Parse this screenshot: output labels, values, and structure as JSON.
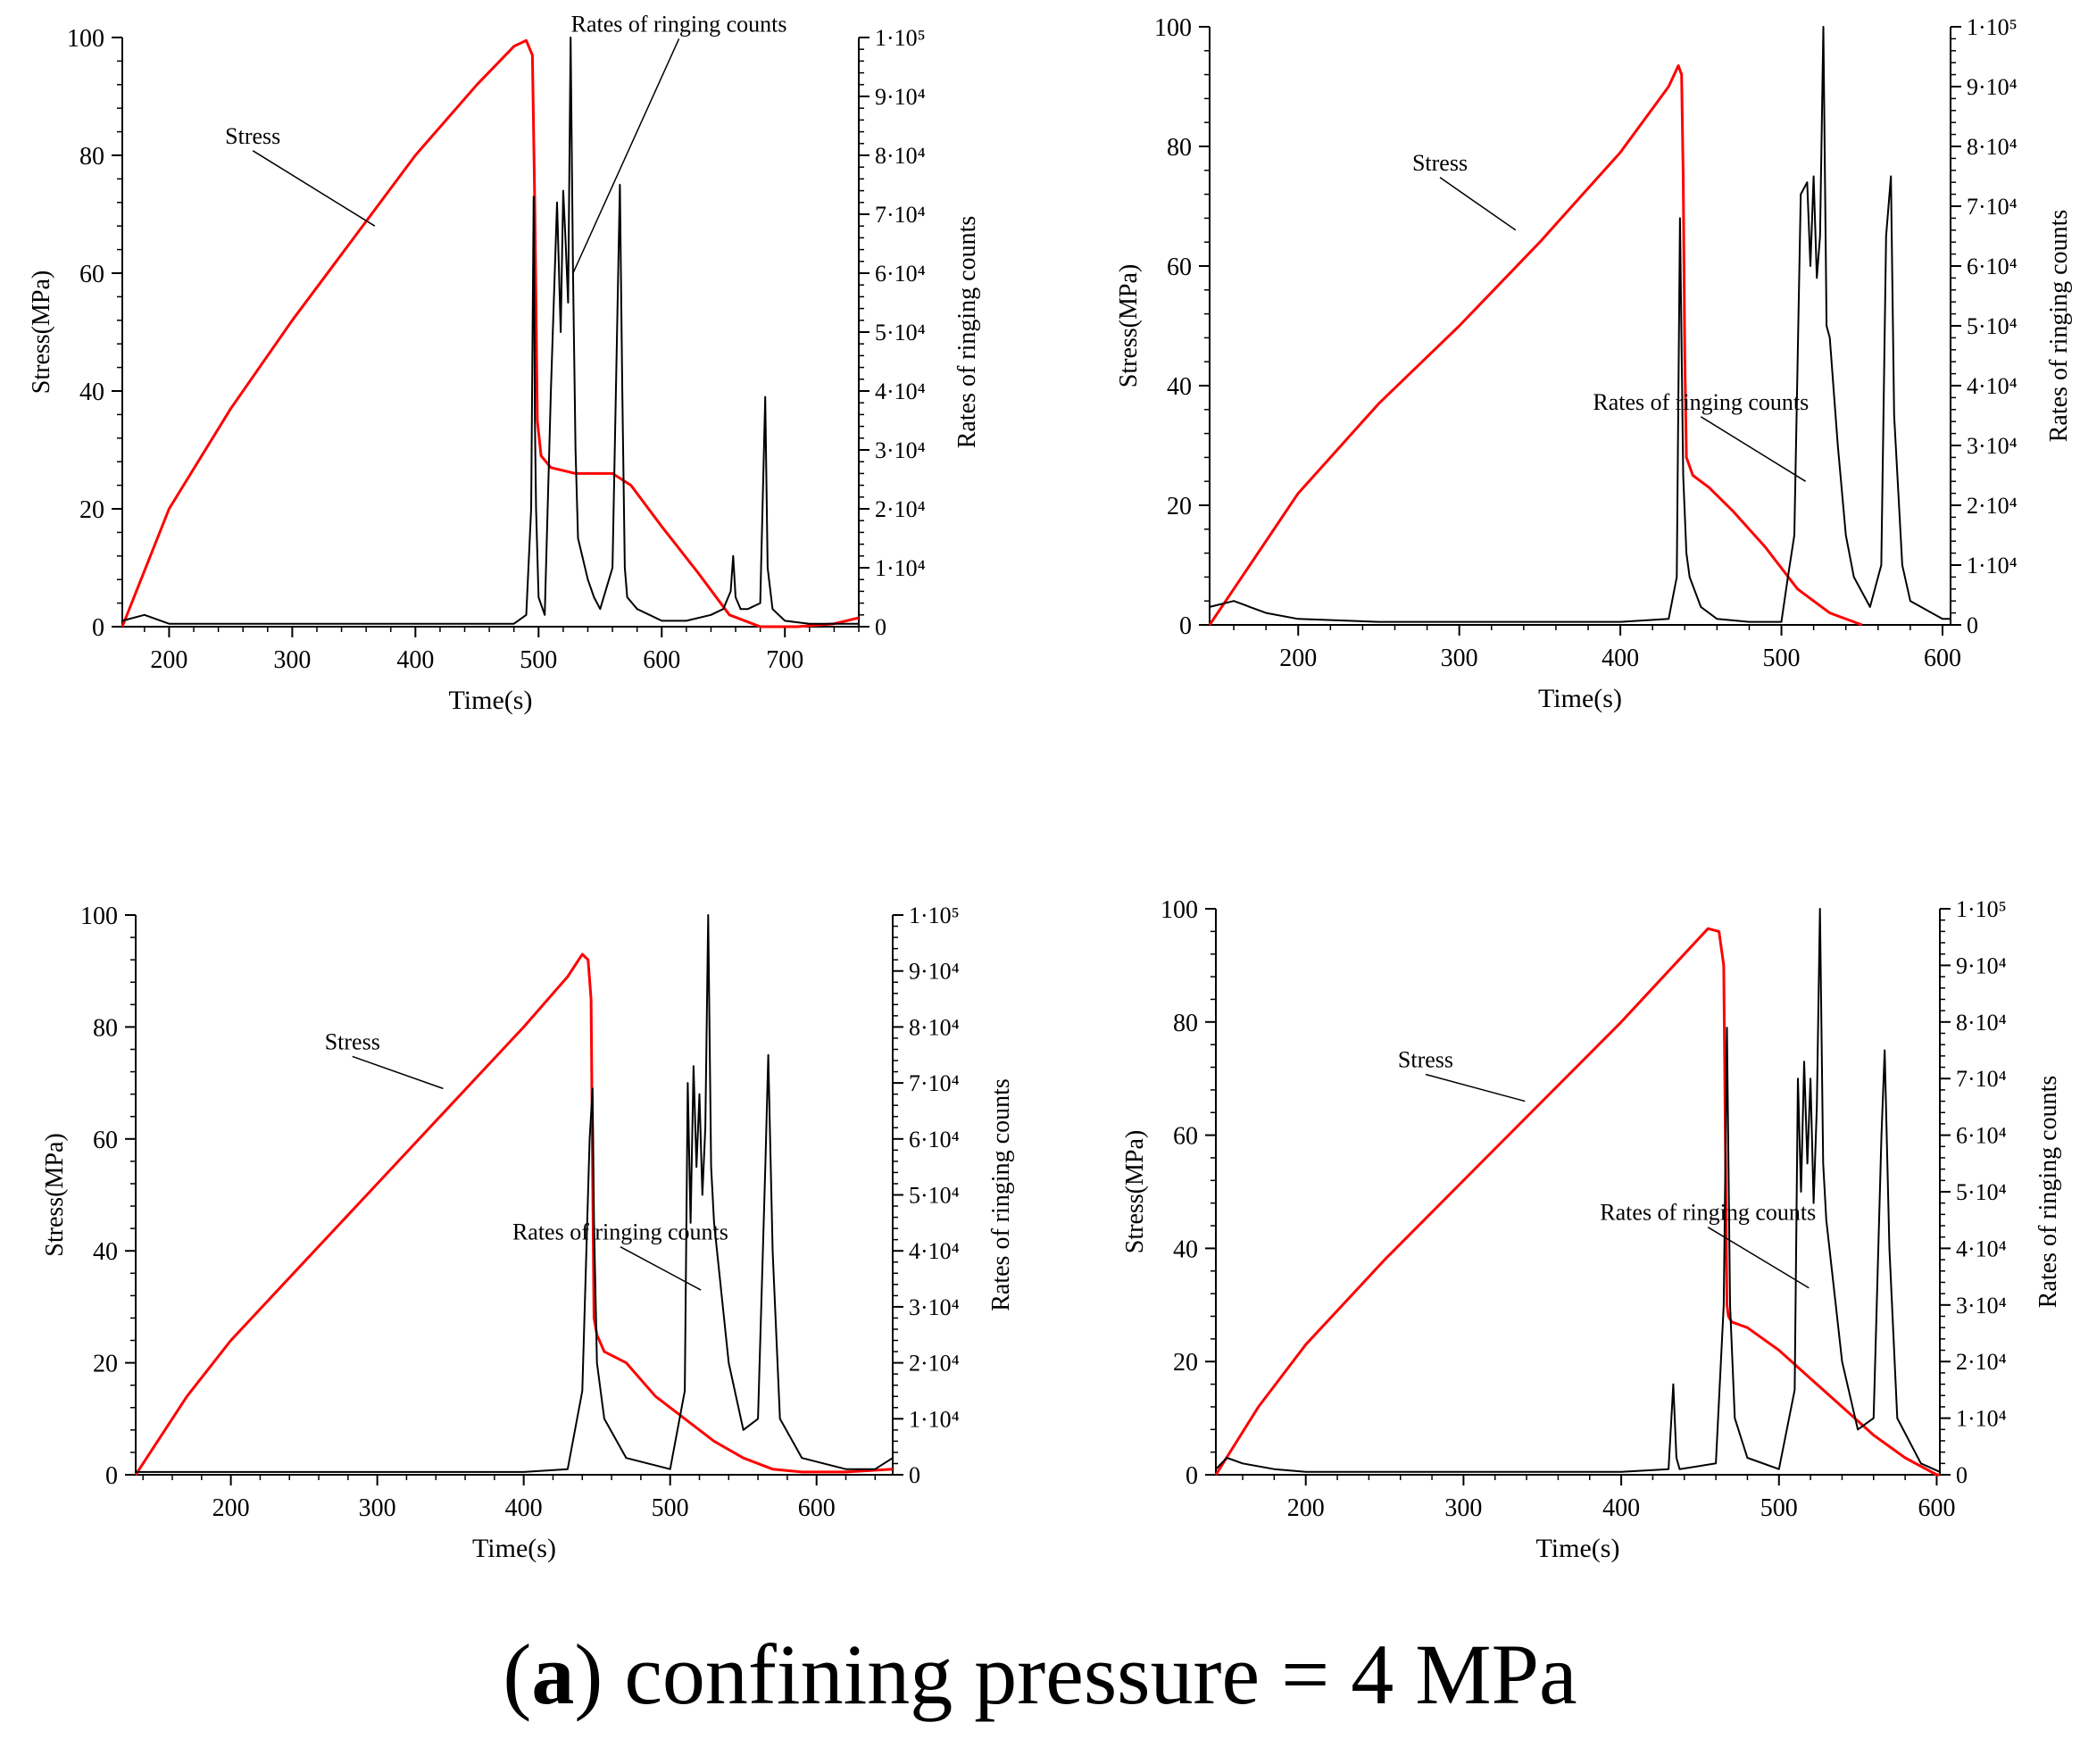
{
  "caption": {
    "open": "(",
    "letter": "a",
    "close": ")",
    "text": " confining pressure = 4 MPa"
  },
  "colors": {
    "stress": "#ff0000",
    "ringing": "#000000",
    "axis": "#000000"
  },
  "chart_data": [
    {
      "type": "line",
      "title": "",
      "xlabel": "Time(s)",
      "ylabel": "Stress(MPa)",
      "y2label": "Rates of ringing counts",
      "xlim": [
        162,
        760
      ],
      "ylim": [
        0,
        100
      ],
      "y2lim": [
        0,
        100000
      ],
      "xticks": [
        200,
        300,
        400,
        500,
        600,
        700
      ],
      "yticks": [
        0,
        20,
        40,
        60,
        80,
        100
      ],
      "y2ticks": [
        "0",
        "1·10⁴",
        "2·10⁴",
        "3·10⁴",
        "4·10⁴",
        "5·10⁴",
        "6·10⁴",
        "7·10⁴",
        "8·10⁴",
        "9·10⁴",
        "1·10⁵"
      ],
      "annotations": [
        {
          "text": "Stress",
          "x": 268,
          "y": 82,
          "target": [
            367,
            68
          ]
        },
        {
          "text": "Rates of ringing counts",
          "x": 614,
          "y": 101,
          "target": [
            528,
            60
          ]
        }
      ],
      "series": [
        {
          "name": "Stress",
          "axis": "left",
          "x": [
            162,
            200,
            250,
            300,
            350,
            400,
            450,
            480,
            490,
            495,
            497,
            499,
            502,
            510,
            530,
            560,
            575,
            600,
            630,
            655,
            680,
            710,
            740,
            760
          ],
          "y": [
            0,
            20,
            37,
            52,
            66,
            80,
            92,
            98.5,
            99.5,
            97,
            70,
            35,
            29,
            27,
            26,
            26,
            24,
            17,
            9,
            2,
            0,
            0,
            0.5,
            1.5
          ]
        },
        {
          "name": "Rates of ringing counts",
          "axis": "right",
          "x": [
            162,
            180,
            200,
            300,
            400,
            480,
            490,
            494,
            496,
            497,
            498,
            500,
            505,
            510,
            515,
            518,
            520,
            522,
            524,
            526,
            528,
            530,
            532,
            540,
            545,
            550,
            560,
            566,
            568,
            570,
            572,
            580,
            600,
            620,
            640,
            650,
            656,
            658,
            660,
            664,
            670,
            680,
            684,
            686,
            690,
            700,
            720,
            740,
            760
          ],
          "y": [
            1000,
            2000,
            500,
            500,
            500,
            500,
            2000,
            20000,
            73000,
            35000,
            20000,
            5000,
            2000,
            40000,
            72000,
            50000,
            74000,
            65000,
            55000,
            100000,
            60000,
            30000,
            15000,
            8000,
            5000,
            3000,
            10000,
            75000,
            40000,
            10000,
            5000,
            3000,
            1000,
            1000,
            2000,
            3000,
            6000,
            12000,
            5000,
            3000,
            3000,
            4000,
            39000,
            10000,
            3000,
            1000,
            500,
            500,
            500
          ]
        }
      ]
    },
    {
      "type": "line",
      "title": "",
      "xlabel": "Time(s)",
      "ylabel": "Stress(MPa)",
      "y2label": "Rates of ringing counts",
      "xlim": [
        145,
        605
      ],
      "ylim": [
        0,
        100
      ],
      "y2lim": [
        0,
        100000
      ],
      "xticks": [
        200,
        300,
        400,
        500,
        600
      ],
      "yticks": [
        0,
        20,
        40,
        60,
        80,
        100
      ],
      "y2ticks": [
        "0",
        "1·10⁴",
        "2·10⁴",
        "3·10⁴",
        "4·10⁴",
        "5·10⁴",
        "6·10⁴",
        "7·10⁴",
        "8·10⁴",
        "9·10⁴",
        "1·10⁵"
      ],
      "annotations": [
        {
          "text": "Stress",
          "x": 288,
          "y": 76,
          "target": [
            335,
            66
          ]
        },
        {
          "text": "Rates of ringing counts",
          "x": 450,
          "y": 36,
          "target": [
            515,
            24
          ]
        }
      ],
      "series": [
        {
          "name": "Stress",
          "axis": "left",
          "x": [
            145,
            170,
            200,
            250,
            300,
            350,
            400,
            430,
            436,
            438,
            439,
            440,
            441,
            445,
            455,
            470,
            490,
            510,
            530,
            550
          ],
          "y": [
            0,
            10,
            22,
            37,
            50,
            64,
            79,
            90,
            93.5,
            92,
            75,
            45,
            28,
            25,
            23,
            19,
            13,
            6,
            2,
            0
          ]
        },
        {
          "name": "Rates of ringing counts",
          "axis": "right",
          "x": [
            145,
            160,
            170,
            180,
            200,
            250,
            300,
            400,
            430,
            435,
            437,
            439,
            441,
            443,
            450,
            460,
            480,
            500,
            504,
            508,
            512,
            516,
            518,
            520,
            522,
            524,
            526,
            528,
            530,
            535,
            540,
            545,
            555,
            562,
            565,
            568,
            570,
            575,
            580,
            600,
            605
          ],
          "y": [
            3000,
            4000,
            3000,
            2000,
            1000,
            500,
            500,
            500,
            1000,
            8000,
            68000,
            25000,
            12000,
            8000,
            3000,
            1000,
            500,
            500,
            8000,
            15000,
            72000,
            74000,
            60000,
            75000,
            58000,
            65000,
            100000,
            50000,
            48000,
            30000,
            15000,
            8000,
            3000,
            10000,
            65000,
            75000,
            35000,
            10000,
            4000,
            1000,
            1000
          ]
        }
      ]
    },
    {
      "type": "line",
      "title": "",
      "xlabel": "Time(s)",
      "ylabel": "Stress(MPa)",
      "y2label": "Rates of ringing counts",
      "xlim": [
        135,
        652
      ],
      "ylim": [
        0,
        100
      ],
      "y2lim": [
        0,
        100000
      ],
      "xticks": [
        200,
        300,
        400,
        500,
        600
      ],
      "yticks": [
        0,
        20,
        40,
        60,
        80,
        100
      ],
      "y2ticks": [
        "0",
        "1·10⁴",
        "2·10⁴",
        "3·10⁴",
        "4·10⁴",
        "5·10⁴",
        "6·10⁴",
        "7·10⁴",
        "8·10⁴",
        "9·10⁴",
        "1·10⁵"
      ],
      "annotations": [
        {
          "text": "Stress",
          "x": 283,
          "y": 76,
          "target": [
            345,
            69
          ]
        },
        {
          "text": "Rates of ringing counts",
          "x": 466,
          "y": 42,
          "target": [
            521,
            33
          ]
        }
      ],
      "series": [
        {
          "name": "Stress",
          "axis": "left",
          "x": [
            135,
            170,
            200,
            250,
            300,
            350,
            400,
            430,
            440,
            444,
            446,
            447,
            448,
            450,
            455,
            470,
            490,
            510,
            530,
            550,
            570,
            590,
            620,
            652
          ],
          "y": [
            0,
            14,
            24,
            38,
            52,
            66,
            80,
            89,
            93,
            92,
            85,
            55,
            28,
            25,
            22,
            20,
            14,
            10,
            6,
            3,
            1,
            0.5,
            0.5,
            1
          ]
        },
        {
          "name": "Rates of ringing counts",
          "axis": "right",
          "x": [
            135,
            200,
            300,
            400,
            430,
            440,
            445,
            447,
            448,
            450,
            455,
            470,
            500,
            505,
            510,
            512,
            514,
            516,
            518,
            520,
            522,
            524,
            526,
            528,
            530,
            540,
            550,
            560,
            565,
            567,
            570,
            575,
            590,
            620,
            640,
            652
          ],
          "y": [
            500,
            500,
            500,
            500,
            1000,
            15000,
            60000,
            69000,
            45000,
            20000,
            10000,
            3000,
            1000,
            8000,
            15000,
            70000,
            45000,
            73000,
            55000,
            68000,
            50000,
            62000,
            100000,
            55000,
            45000,
            20000,
            8000,
            10000,
            55000,
            75000,
            40000,
            10000,
            3000,
            1000,
            1000,
            3000
          ]
        }
      ]
    },
    {
      "type": "line",
      "title": "",
      "xlabel": "Time(s)",
      "ylabel": "Stress(MPa)",
      "y2label": "Rates of ringing counts",
      "xlim": [
        143,
        602
      ],
      "ylim": [
        0,
        100
      ],
      "y2lim": [
        0,
        100000
      ],
      "xticks": [
        200,
        300,
        400,
        500,
        600
      ],
      "yticks": [
        0,
        20,
        40,
        60,
        80,
        100
      ],
      "y2ticks": [
        "0",
        "1·10⁴",
        "2·10⁴",
        "3·10⁴",
        "4·10⁴",
        "5·10⁴",
        "6·10⁴",
        "7·10⁴",
        "8·10⁴",
        "9·10⁴",
        "1·10⁵"
      ],
      "annotations": [
        {
          "text": "Stress",
          "x": 276,
          "y": 72,
          "target": [
            339,
            66
          ]
        },
        {
          "text": "Rates of ringing counts",
          "x": 455,
          "y": 45,
          "target": [
            519,
            33
          ]
        }
      ],
      "series": [
        {
          "name": "Stress",
          "axis": "left",
          "x": [
            143,
            170,
            200,
            250,
            300,
            350,
            400,
            440,
            455,
            462,
            465,
            466,
            467,
            468,
            470,
            480,
            500,
            520,
            540,
            560,
            580,
            600,
            602
          ],
          "y": [
            0,
            12,
            23,
            38,
            52,
            66,
            80,
            92,
            96.5,
            96,
            90,
            60,
            30,
            28,
            27,
            26,
            22,
            17,
            12,
            7,
            3,
            0,
            0
          ]
        },
        {
          "name": "Rates of ringing counts",
          "axis": "right",
          "x": [
            143,
            150,
            160,
            180,
            200,
            300,
            400,
            430,
            433,
            435,
            437,
            460,
            465,
            467,
            469,
            472,
            480,
            500,
            505,
            510,
            512,
            514,
            516,
            518,
            520,
            522,
            524,
            526,
            528,
            530,
            540,
            550,
            560,
            565,
            567,
            570,
            575,
            590,
            602
          ],
          "y": [
            1000,
            3000,
            2000,
            1000,
            500,
            500,
            500,
            1000,
            16000,
            3000,
            1000,
            2000,
            30000,
            79000,
            30000,
            10000,
            3000,
            1000,
            8000,
            15000,
            70000,
            50000,
            73000,
            55000,
            70000,
            48000,
            65000,
            100000,
            55000,
            45000,
            20000,
            8000,
            10000,
            60000,
            75000,
            40000,
            10000,
            2000,
            500
          ]
        }
      ]
    }
  ]
}
